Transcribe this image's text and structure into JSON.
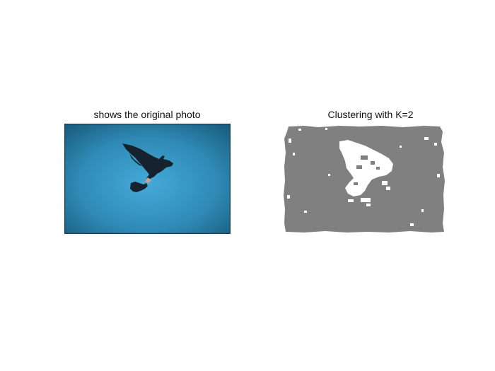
{
  "figure": {
    "left_title": "shows the original photo",
    "right_title": "Clustering with K=2"
  },
  "colors": {
    "sky_center": "#3fa4d4",
    "sky_edge": "#1d6a8c",
    "frame": "#0f3f5a",
    "bird": "#16232e",
    "cluster_gray": "#808080",
    "cluster_white": "#ffffff"
  }
}
